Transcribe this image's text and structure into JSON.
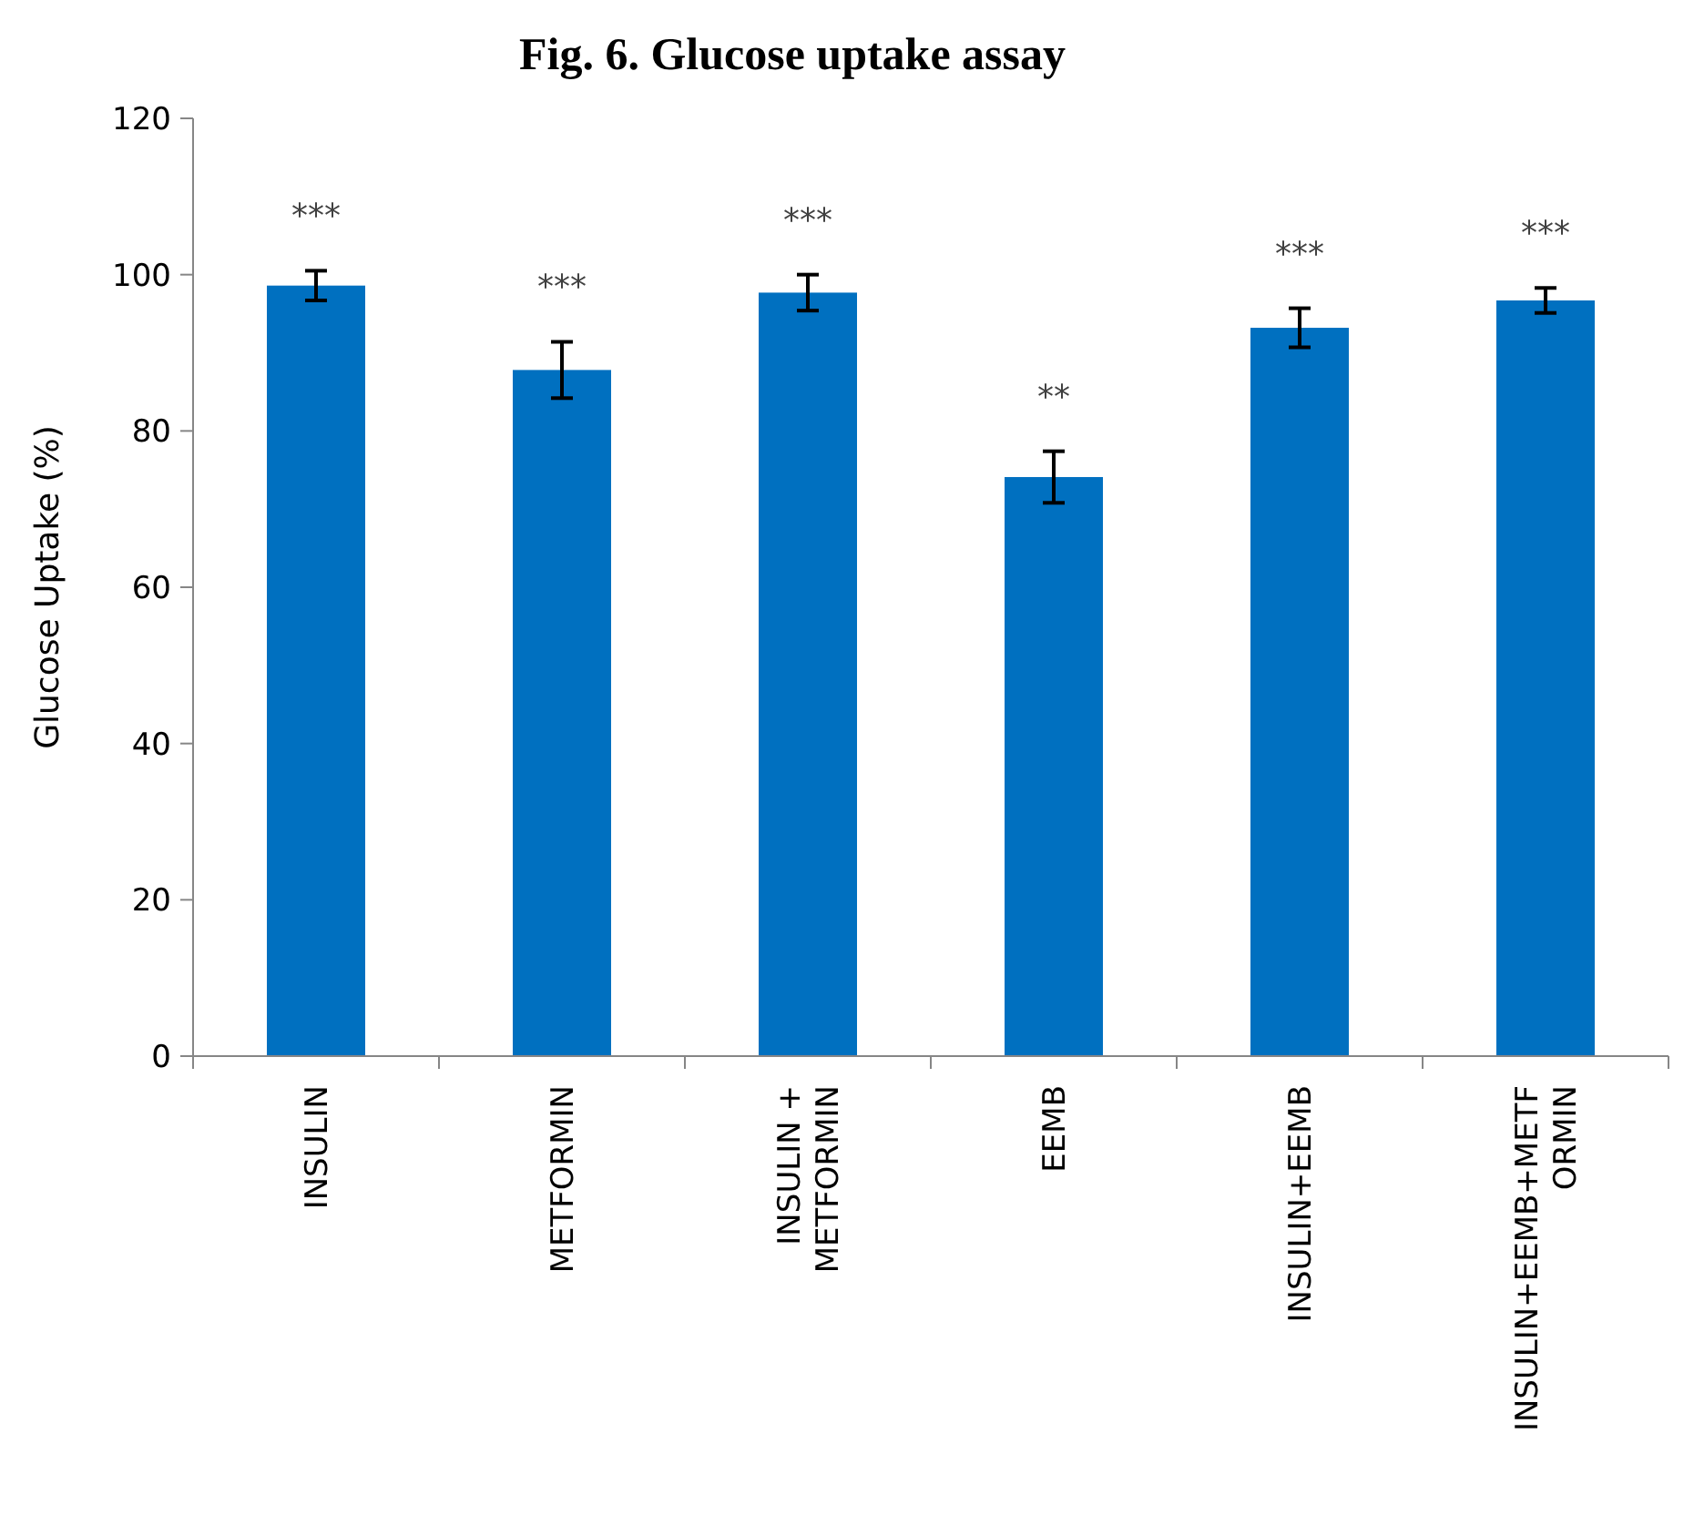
{
  "chart_data": {
    "type": "bar",
    "title": "Fig. 6. Glucose uptake assay",
    "ylabel": "Glucose Uptake (%)",
    "categories": [
      "INSULIN",
      "METFORMIN",
      "INSULIN + METFORMIN",
      "EEMB",
      "INSULIN+EEMB",
      "INSULIN+EEMB+METFORMIN"
    ],
    "values": [
      98.6,
      87.8,
      97.7,
      74.1,
      93.2,
      96.7
    ],
    "errors": [
      1.9,
      3.6,
      2.3,
      3.3,
      2.5,
      1.6
    ],
    "color": "#0070c0",
    "ylim": [
      0,
      120
    ],
    "yticks": [
      0,
      20,
      40,
      60,
      80,
      100,
      120
    ],
    "grid": false,
    "annotations": [
      "***",
      "***",
      "***",
      "**",
      "***",
      "***"
    ]
  }
}
